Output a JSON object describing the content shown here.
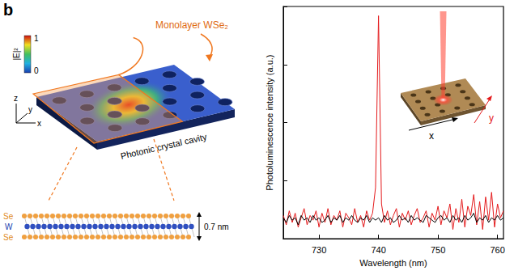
{
  "panel_label": "b",
  "diagram": {
    "sheet_label": "Monolayer WSe₂",
    "colorbar": {
      "label": "|E|²",
      "min": 0,
      "max": 1
    },
    "axes": [
      "z",
      "y",
      "x"
    ],
    "substrate_label": "Photonic crystal cavity",
    "atoms": [
      "Se",
      "W",
      "Se"
    ],
    "thickness_label": "0.7 nm"
  },
  "chart_data": {
    "type": "line",
    "x_label": "Wavelength (nm)",
    "y_label": "Photoluminescence intensity (a.u.)",
    "x": [
      724,
      724.5,
      725,
      725.5,
      726,
      726.5,
      727,
      727.5,
      728,
      728.5,
      729,
      729.5,
      730,
      730.5,
      731,
      731.5,
      732,
      732.5,
      733,
      733.5,
      734,
      734.5,
      735,
      735.5,
      736,
      736.5,
      737,
      737.5,
      738,
      738.5,
      739,
      739.5,
      740,
      740.5,
      741,
      741.5,
      742,
      742.5,
      743,
      743.5,
      744,
      744.5,
      745,
      745.5,
      746,
      746.5,
      747,
      747.5,
      748,
      748.5,
      749,
      749.5,
      750,
      750.5,
      751,
      751.5,
      752,
      752.5,
      753,
      753.5,
      754,
      754.5,
      755,
      755.5,
      756,
      756.5,
      757,
      757.5,
      758,
      758.5,
      759,
      759.5,
      760,
      760.5,
      761
    ],
    "series": [
      {
        "color": "#e41a1c",
        "values": [
          0.1,
          0.06,
          0.12,
          0.07,
          0.11,
          0.05,
          0.09,
          0.13,
          0.06,
          0.1,
          0.08,
          0.12,
          0.05,
          0.11,
          0.07,
          0.13,
          0.06,
          0.1,
          0.08,
          0.12,
          0.05,
          0.11,
          0.09,
          0.06,
          0.13,
          0.07,
          0.1,
          0.05,
          0.12,
          0.08,
          0.11,
          0.22,
          0.96,
          0.15,
          0.07,
          0.12,
          0.06,
          0.1,
          0.13,
          0.05,
          0.11,
          0.08,
          0.12,
          0.06,
          0.1,
          0.13,
          0.07,
          0.09,
          0.12,
          0.05,
          0.11,
          0.08,
          0.14,
          0.06,
          0.12,
          0.09,
          0.15,
          0.04,
          0.13,
          0.07,
          0.17,
          0.05,
          0.14,
          0.1,
          0.19,
          0.06,
          0.16,
          0.04,
          0.18,
          0.08,
          0.2,
          0.05,
          0.15,
          0.09,
          0.12
        ]
      },
      {
        "color": "#000000",
        "values": [
          0.09,
          0.07,
          0.1,
          0.08,
          0.09,
          0.06,
          0.1,
          0.08,
          0.09,
          0.07,
          0.1,
          0.08,
          0.09,
          0.07,
          0.08,
          0.1,
          0.07,
          0.09,
          0.08,
          0.1,
          0.07,
          0.09,
          0.08,
          0.1,
          0.08,
          0.07,
          0.09,
          0.08,
          0.1,
          0.07,
          0.09,
          0.08,
          0.09,
          0.07,
          0.1,
          0.08,
          0.09,
          0.07,
          0.08,
          0.1,
          0.08,
          0.09,
          0.07,
          0.1,
          0.08,
          0.09,
          0.08,
          0.07,
          0.1,
          0.09,
          0.08,
          0.07,
          0.09,
          0.1,
          0.08,
          0.09,
          0.07,
          0.1,
          0.08,
          0.09,
          0.07,
          0.1,
          0.08,
          0.09,
          0.11,
          0.07,
          0.09,
          0.08,
          0.1,
          0.07,
          0.09,
          0.08,
          0.1,
          0.08,
          0.09
        ]
      }
    ],
    "xlim": [
      724,
      761
    ],
    "xticks": [
      730,
      740,
      750,
      760
    ],
    "ylim": [
      0,
      1
    ],
    "yticks": [
      0,
      0.25,
      0.5,
      0.75,
      1
    ],
    "tick_labels": "x",
    "grid": false,
    "inset": {
      "x_label": "x",
      "y_label": "y"
    }
  }
}
